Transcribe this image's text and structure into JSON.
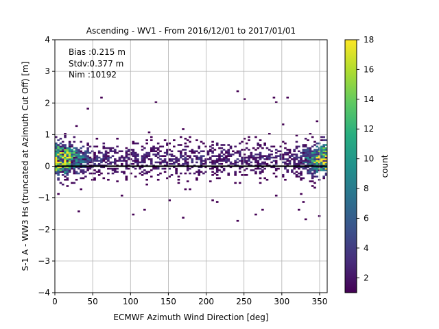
{
  "chart_data": {
    "type": "heatmap",
    "title": "Ascending - WV1 - From 2016/12/01 to 2017/01/01",
    "xlabel": "ECMWF Azimuth Wind Direction [deg]",
    "ylabel": "S-1 A - WW3 Hs (truncated at Azimuth Cut Off) [m]",
    "xlim": [
      0,
      360
    ],
    "ylim": [
      -4,
      4
    ],
    "xticks": [
      "0",
      "50",
      "100",
      "150",
      "200",
      "250",
      "300",
      "350"
    ],
    "yticks": [
      "−4",
      "−3",
      "−2",
      "−1",
      "0",
      "1",
      "2",
      "3",
      "4"
    ],
    "grid": true,
    "reference_line_y": 0,
    "annotations": [
      "Bias :0.215 m",
      "Stdv:0.377 m",
      "Nim :10192"
    ],
    "colorbar": {
      "label": "count",
      "min": 1,
      "max": 18,
      "ticks": [
        "2",
        "4",
        "6",
        "8",
        "10",
        "12",
        "14",
        "16",
        "18"
      ],
      "colormap": "viridis"
    },
    "bins": {
      "x_width_deg": 3,
      "y_height_m": 0.05
    },
    "density_description": {
      "main_band_y_range": [
        -0.4,
        1.1
      ],
      "high_count_regions": [
        {
          "x_range": [
            0,
            60
          ],
          "y_range": [
            0.0,
            0.5
          ],
          "peak_count": 14
        },
        {
          "x_range": [
            320,
            360
          ],
          "y_range": [
            0.0,
            0.6
          ],
          "peak_count": 16
        }
      ],
      "max_count": 18
    }
  },
  "colors": {
    "background": "#ffffff",
    "grid": "#b0b0b0",
    "reference_line": "#000000"
  }
}
